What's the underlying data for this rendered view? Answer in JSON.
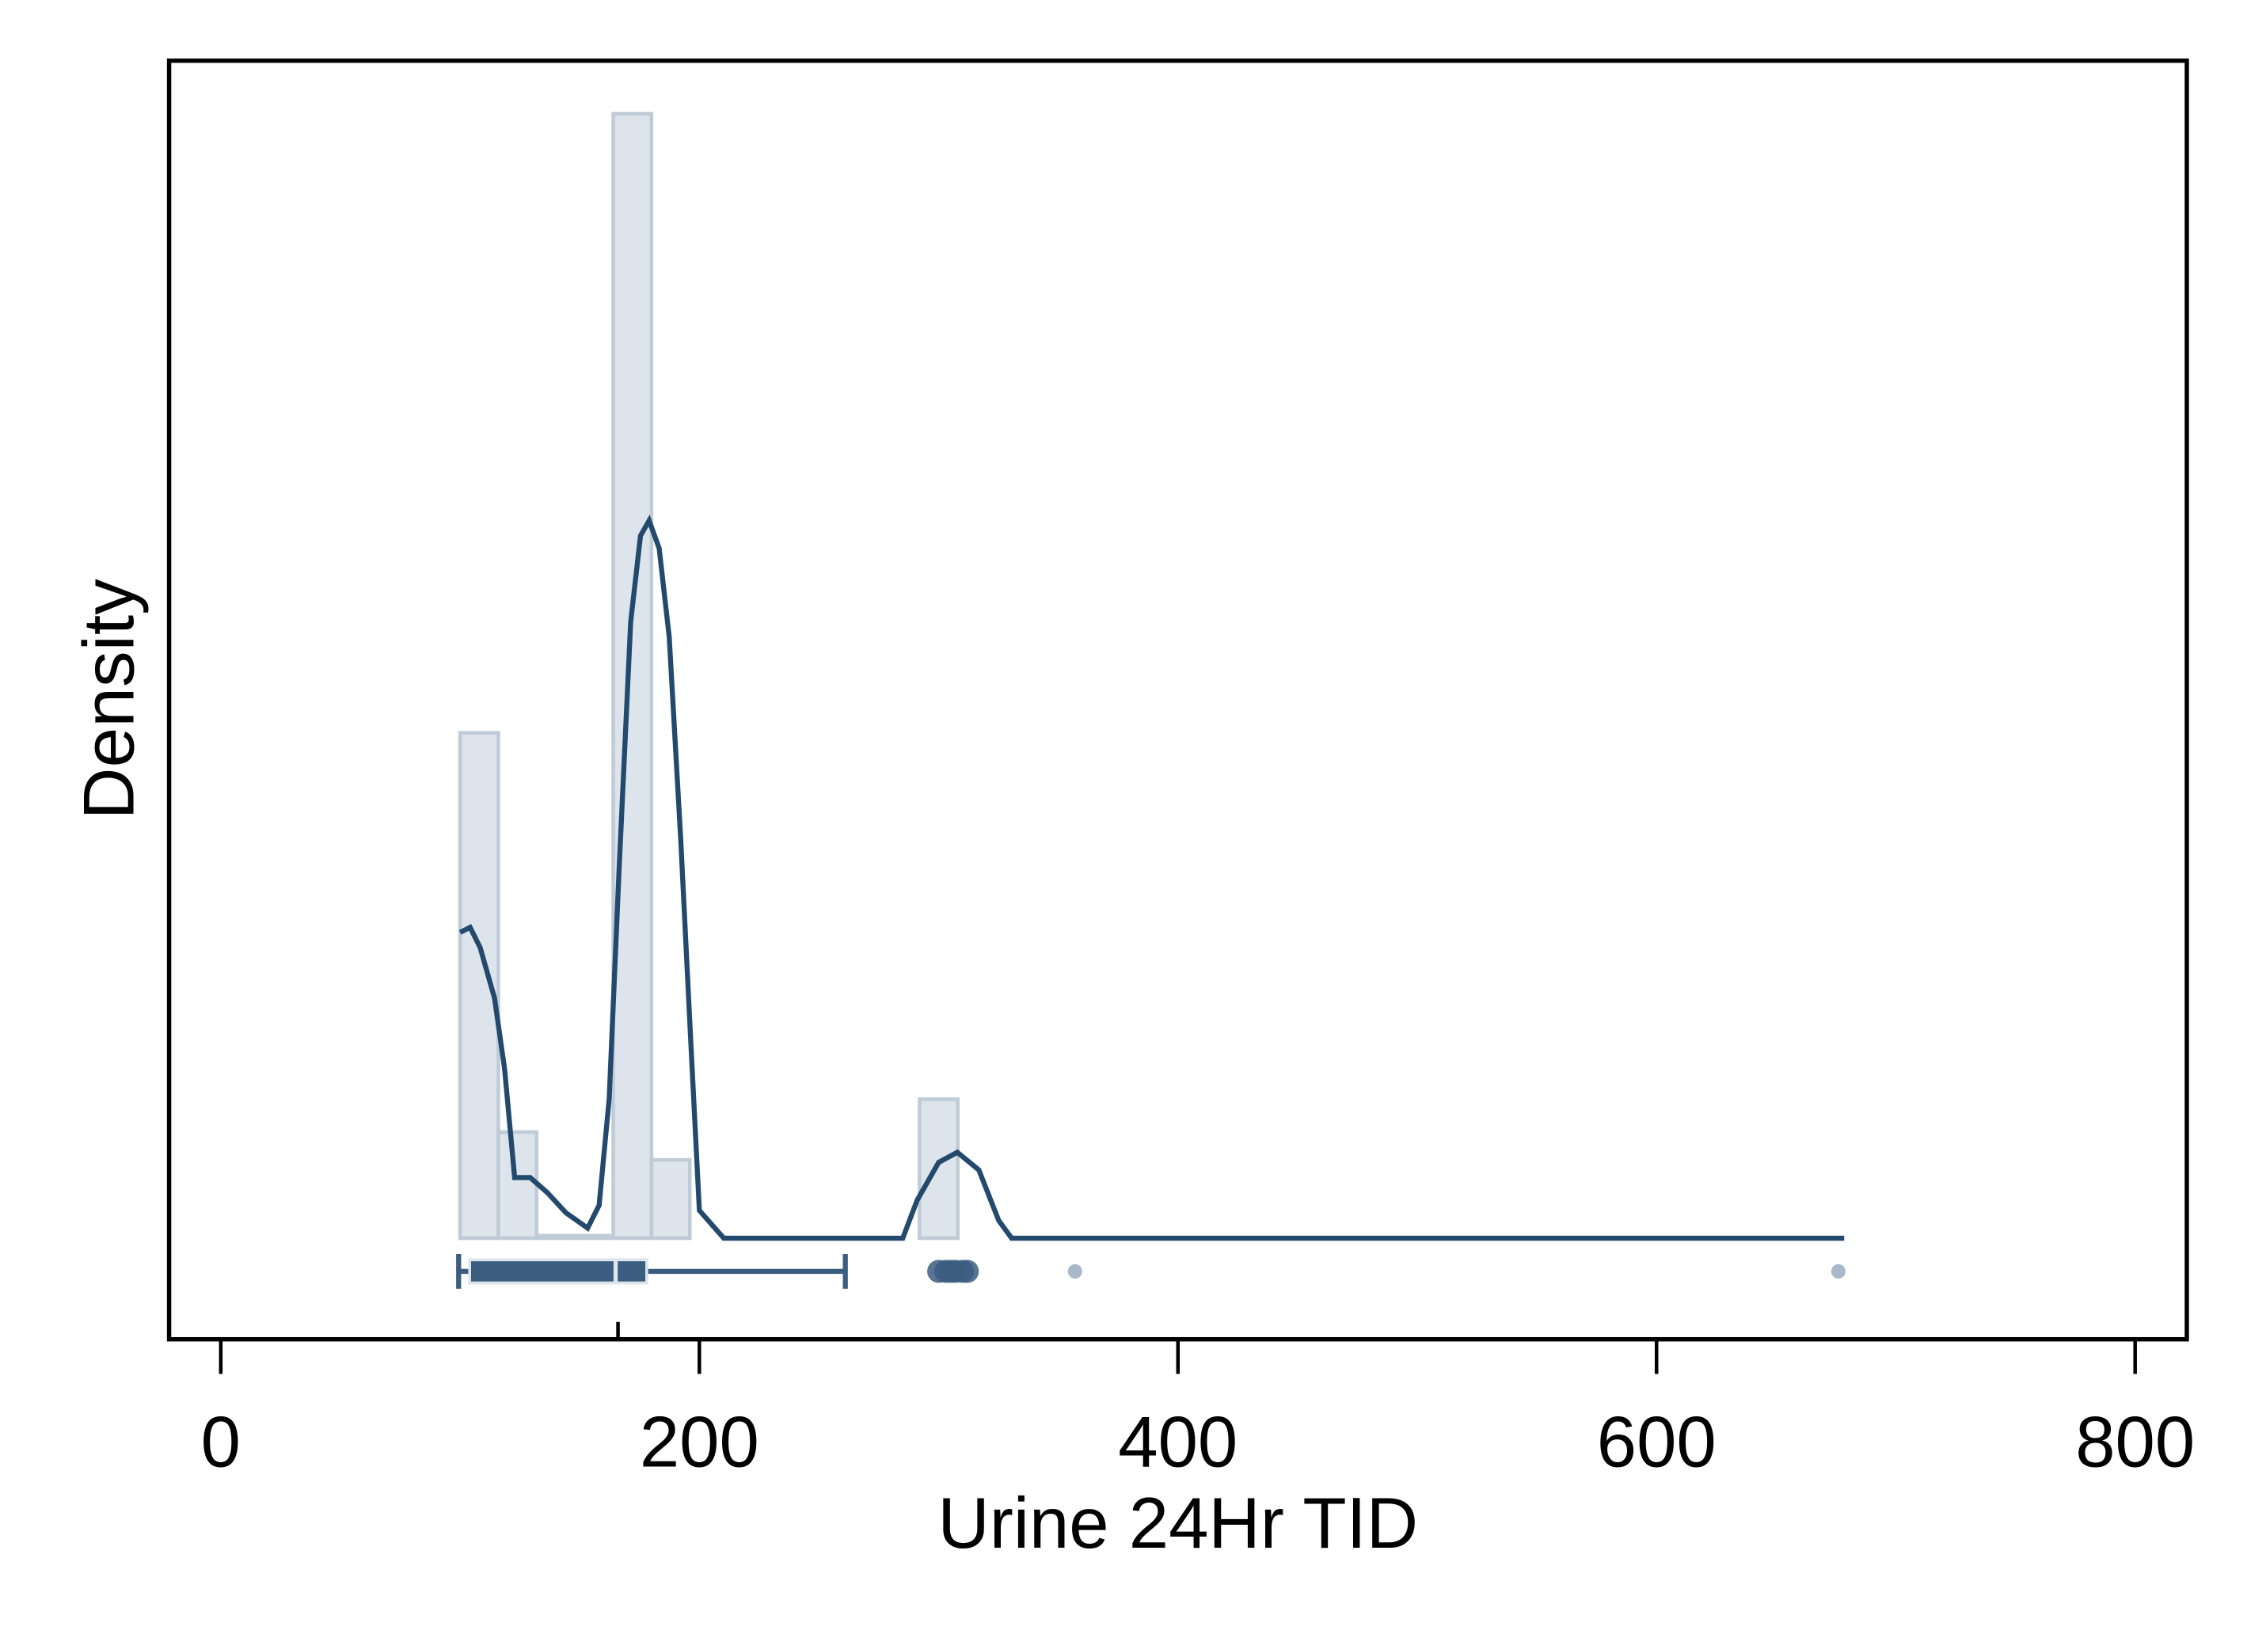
{
  "chart_data": {
    "type": "histogram",
    "x_label": "Urine 24Hr TID",
    "y_label": "Density",
    "bins": [
      100,
      116,
      132,
      148,
      164,
      180,
      196,
      212,
      228,
      244,
      260,
      276,
      292,
      308
    ],
    "values": [
      0.02,
      0.0042,
      0.0001,
      0.0001,
      0.0445,
      0.0031,
      0,
      0,
      0,
      0,
      0,
      0,
      0.0055
    ],
    "color": "#dde4eb",
    "edge_color": "#bfcbd6",
    "density": {
      "color": "#23496d",
      "x": [
        100,
        104.2,
        108.4,
        114.4,
        118.6,
        122.8,
        129.3,
        136.5,
        144.3,
        153.3,
        158.1,
        162.3,
        166.5,
        171.3,
        175.4,
        179,
        183.2,
        187.4,
        192.2,
        196.4,
        200,
        210.2,
        285,
        291,
        300,
        307.8,
        316.8,
        325.1,
        330.5,
        678.4
      ],
      "values": [
        0.0121,
        0.0123,
        0.0115,
        0.0095,
        0.0067,
        0.0024,
        0.0024,
        0.0018,
        0.001,
        0.0004,
        0.0013,
        0.0055,
        0.0147,
        0.0244,
        0.0278,
        0.0284,
        0.0273,
        0.0238,
        0.0158,
        0.0078,
        0.0011,
        0,
        0,
        0.0015,
        0.003,
        0.0034,
        0.0027,
        0.0007,
        0,
        0
      ]
    },
    "box": {
      "color": "#3b5d80",
      "whisker_low": 99.4,
      "q1": 104,
      "median": 165,
      "q3": 178,
      "whisker_high": 261,
      "outliers": [
        300,
        303,
        305,
        307,
        310,
        312,
        357,
        676
      ],
      "mean": 166
    },
    "xlim": [
      -21.6,
      821.6
    ],
    "xticks": [
      0,
      200,
      400,
      600,
      800
    ],
    "ylim": [
      -0.004,
      0.0466
    ]
  }
}
